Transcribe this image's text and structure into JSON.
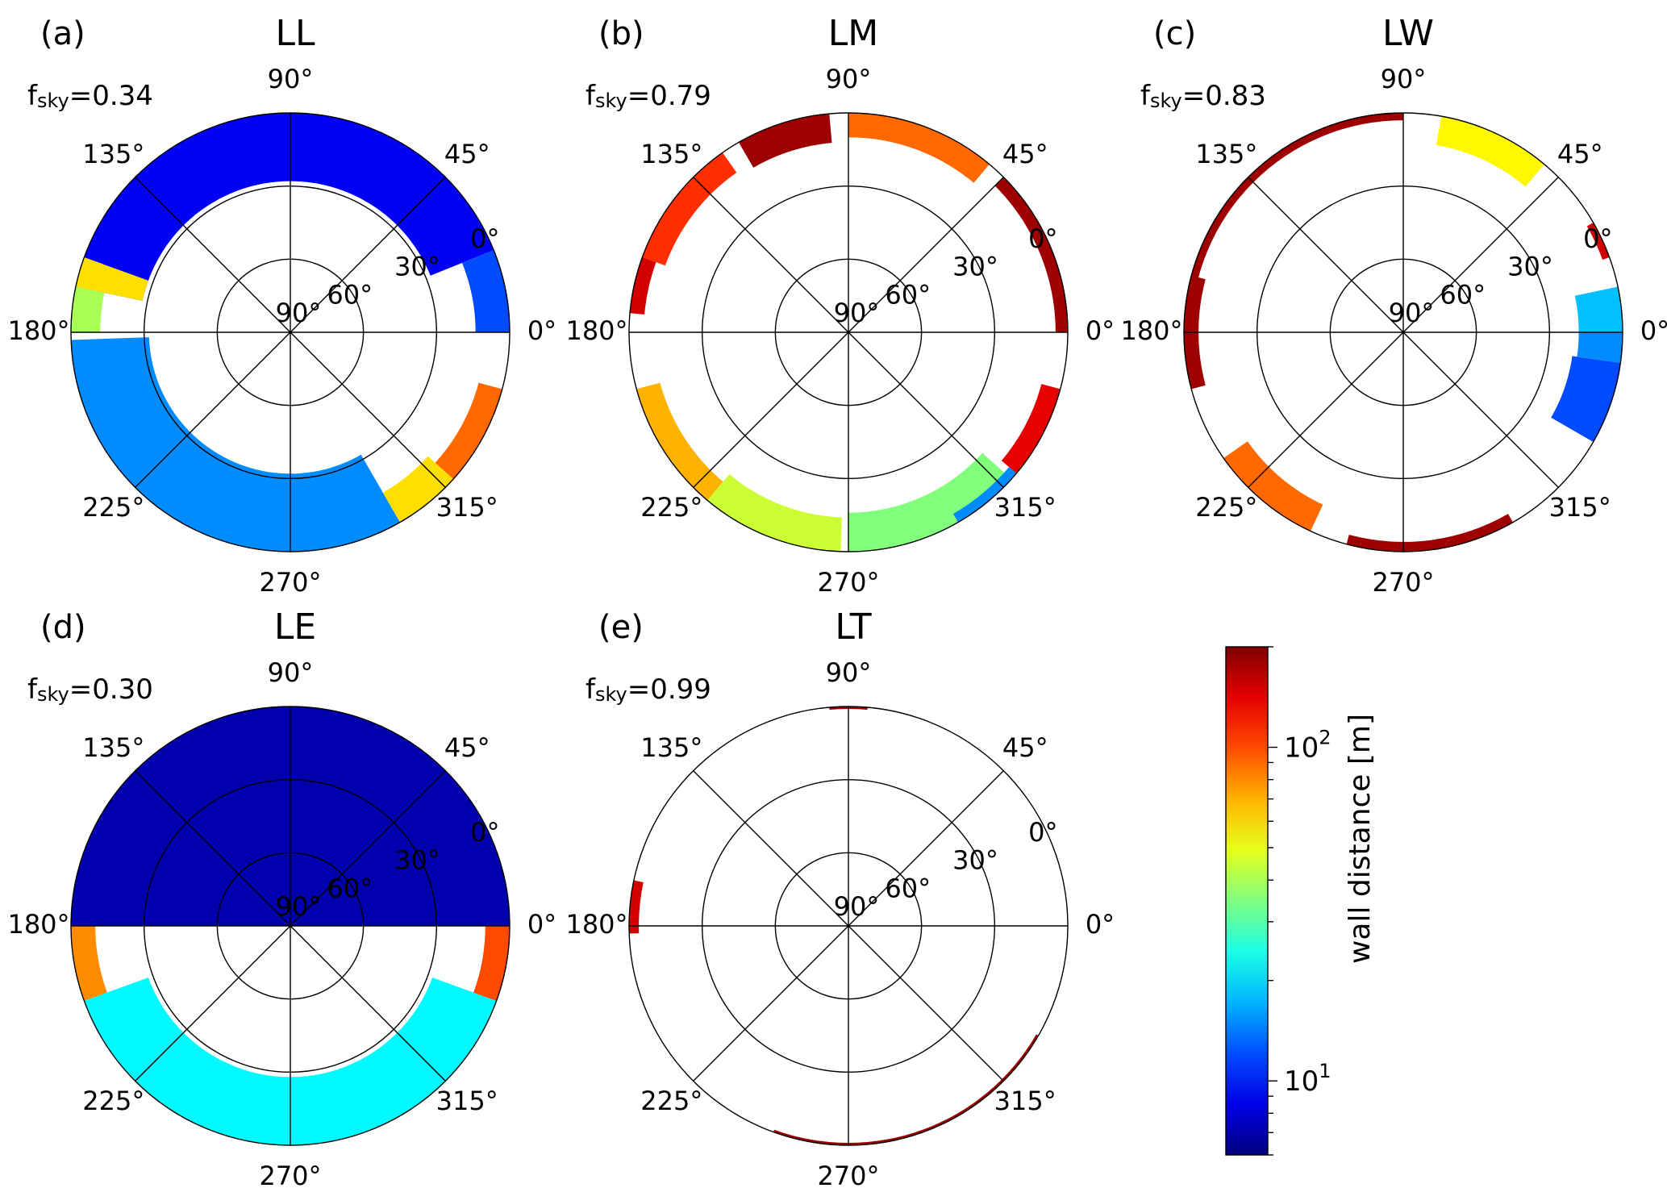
{
  "chart_data": [
    {
      "type": "polar",
      "panel_letter": "(a)",
      "title": "LL",
      "fsky_label": "f",
      "fsky_sub": "sky",
      "fsky_value": "=0.34",
      "azimuth_ticks": [
        "0°",
        "45°",
        "90°",
        "135°",
        "180°",
        "225°",
        "270°",
        "315°"
      ],
      "elevation_ticks": [
        "0°",
        "30°",
        "60°",
        "90°"
      ],
      "sectors": [
        {
          "az": [
            22,
            168
          ],
          "el": [
            0,
            28
          ],
          "wall_distance_m": 9
        },
        {
          "az": [
            168,
            180
          ],
          "el": [
            0,
            12
          ],
          "wall_distance_m": 40
        },
        {
          "az": [
            160,
            168
          ],
          "el": [
            0,
            28
          ],
          "wall_distance_m": 60
        },
        {
          "az": [
            182,
            300
          ],
          "el": [
            0,
            32
          ],
          "wall_distance_m": 15
        },
        {
          "az": [
            300,
            318
          ],
          "el": [
            0,
            14
          ],
          "wall_distance_m": 60
        },
        {
          "az": [
            318,
            345
          ],
          "el": [
            0,
            10
          ],
          "wall_distance_m": 90
        },
        {
          "az": [
            0,
            22
          ],
          "el": [
            0,
            14
          ],
          "wall_distance_m": 12
        }
      ]
    },
    {
      "type": "polar",
      "panel_letter": "(b)",
      "title": "LM",
      "fsky_label": "f",
      "fsky_sub": "sky",
      "fsky_value": "=0.79",
      "azimuth_ticks": [
        "0°",
        "45°",
        "90°",
        "135°",
        "180°",
        "225°",
        "270°",
        "315°"
      ],
      "elevation_ticks": [
        "0°",
        "30°",
        "60°",
        "90°"
      ],
      "sectors": [
        {
          "az": [
            50,
            90
          ],
          "el": [
            0,
            10
          ],
          "wall_distance_m": 90
        },
        {
          "az": [
            95,
            120
          ],
          "el": [
            0,
            12
          ],
          "wall_distance_m": 180
        },
        {
          "az": [
            125,
            160
          ],
          "el": [
            0,
            10
          ],
          "wall_distance_m": 110
        },
        {
          "az": [
            160,
            175
          ],
          "el": [
            0,
            6
          ],
          "wall_distance_m": 150
        },
        {
          "az": [
            195,
            230
          ],
          "el": [
            0,
            10
          ],
          "wall_distance_m": 70
        },
        {
          "az": [
            230,
            268
          ],
          "el": [
            0,
            14
          ],
          "wall_distance_m": 45
        },
        {
          "az": [
            270,
            318
          ],
          "el": [
            0,
            16
          ],
          "wall_distance_m": 35
        },
        {
          "az": [
            300,
            320
          ],
          "el": [
            0,
            4
          ],
          "wall_distance_m": 15
        },
        {
          "az": [
            320,
            345
          ],
          "el": [
            0,
            8
          ],
          "wall_distance_m": 140
        },
        {
          "az": [
            0,
            45
          ],
          "el": [
            0,
            5
          ],
          "wall_distance_m": 180
        }
      ]
    },
    {
      "type": "polar",
      "panel_letter": "(c)",
      "title": "LW",
      "fsky_label": "f",
      "fsky_sub": "sky",
      "fsky_value": "=0.83",
      "azimuth_ticks": [
        "0°",
        "45°",
        "90°",
        "135°",
        "180°",
        "225°",
        "270°",
        "315°"
      ],
      "elevation_ticks": [
        "0°",
        "30°",
        "60°",
        "90°"
      ],
      "sectors": [
        {
          "az": [
            50,
            80
          ],
          "el": [
            0,
            12
          ],
          "wall_distance_m": 55
        },
        {
          "az": [
            90,
            180
          ],
          "el": [
            0,
            3
          ],
          "wall_distance_m": 180
        },
        {
          "az": [
            165,
            195
          ],
          "el": [
            0,
            6
          ],
          "wall_distance_m": 180
        },
        {
          "az": [
            215,
            245
          ],
          "el": [
            0,
            12
          ],
          "wall_distance_m": 90
        },
        {
          "az": [
            255,
            300
          ],
          "el": [
            0,
            4
          ],
          "wall_distance_m": 180
        },
        {
          "az": [
            330,
            352
          ],
          "el": [
            0,
            20
          ],
          "wall_distance_m": 12
        },
        {
          "az": [
            352,
            360
          ],
          "el": [
            0,
            18
          ],
          "wall_distance_m": 15
        },
        {
          "az": [
            0,
            12
          ],
          "el": [
            0,
            18
          ],
          "wall_distance_m": 18
        },
        {
          "az": [
            20,
            30
          ],
          "el": [
            0,
            3
          ],
          "wall_distance_m": 150
        }
      ]
    },
    {
      "type": "polar",
      "panel_letter": "(d)",
      "title": "LE",
      "fsky_label": "f",
      "fsky_sub": "sky",
      "fsky_value": "=0.30",
      "azimuth_ticks": [
        "0°",
        "45°",
        "90°",
        "135°",
        "180°",
        "225°",
        "270°",
        "315°"
      ],
      "elevation_ticks": [
        "0°",
        "30°",
        "60°",
        "90°"
      ],
      "sectors": [
        {
          "az": [
            0,
            180
          ],
          "el": [
            0,
            90
          ],
          "wall_distance_m": 7
        },
        {
          "az": [
            180,
            200
          ],
          "el": [
            0,
            10
          ],
          "wall_distance_m": 80
        },
        {
          "az": [
            200,
            340
          ],
          "el": [
            0,
            28
          ],
          "wall_distance_m": 22
        },
        {
          "az": [
            340,
            360
          ],
          "el": [
            0,
            10
          ],
          "wall_distance_m": 100
        }
      ]
    },
    {
      "type": "polar",
      "panel_letter": "(e)",
      "title": "LT",
      "fsky_label": "f",
      "fsky_sub": "sky",
      "fsky_value": "=0.99",
      "azimuth_ticks": [
        "0°",
        "45°",
        "90°",
        "135°",
        "180°",
        "225°",
        "270°",
        "315°"
      ],
      "elevation_ticks": [
        "0°",
        "30°",
        "60°",
        "90°"
      ],
      "sectors": [
        {
          "az": [
            168,
            182
          ],
          "el": [
            0,
            4
          ],
          "wall_distance_m": 150
        },
        {
          "az": [
            85,
            95
          ],
          "el": [
            0,
            1
          ],
          "wall_distance_m": 180
        },
        {
          "az": [
            250,
            330
          ],
          "el": [
            0,
            1
          ],
          "wall_distance_m": 180
        }
      ]
    }
  ],
  "colorbar": {
    "label": "wall distance [m]",
    "scale": "log",
    "range": [
      6,
      200
    ],
    "ticks": [
      {
        "base": "10",
        "exp": "2",
        "value": 100
      },
      {
        "base": "10",
        "exp": "1",
        "value": 10
      }
    ]
  }
}
